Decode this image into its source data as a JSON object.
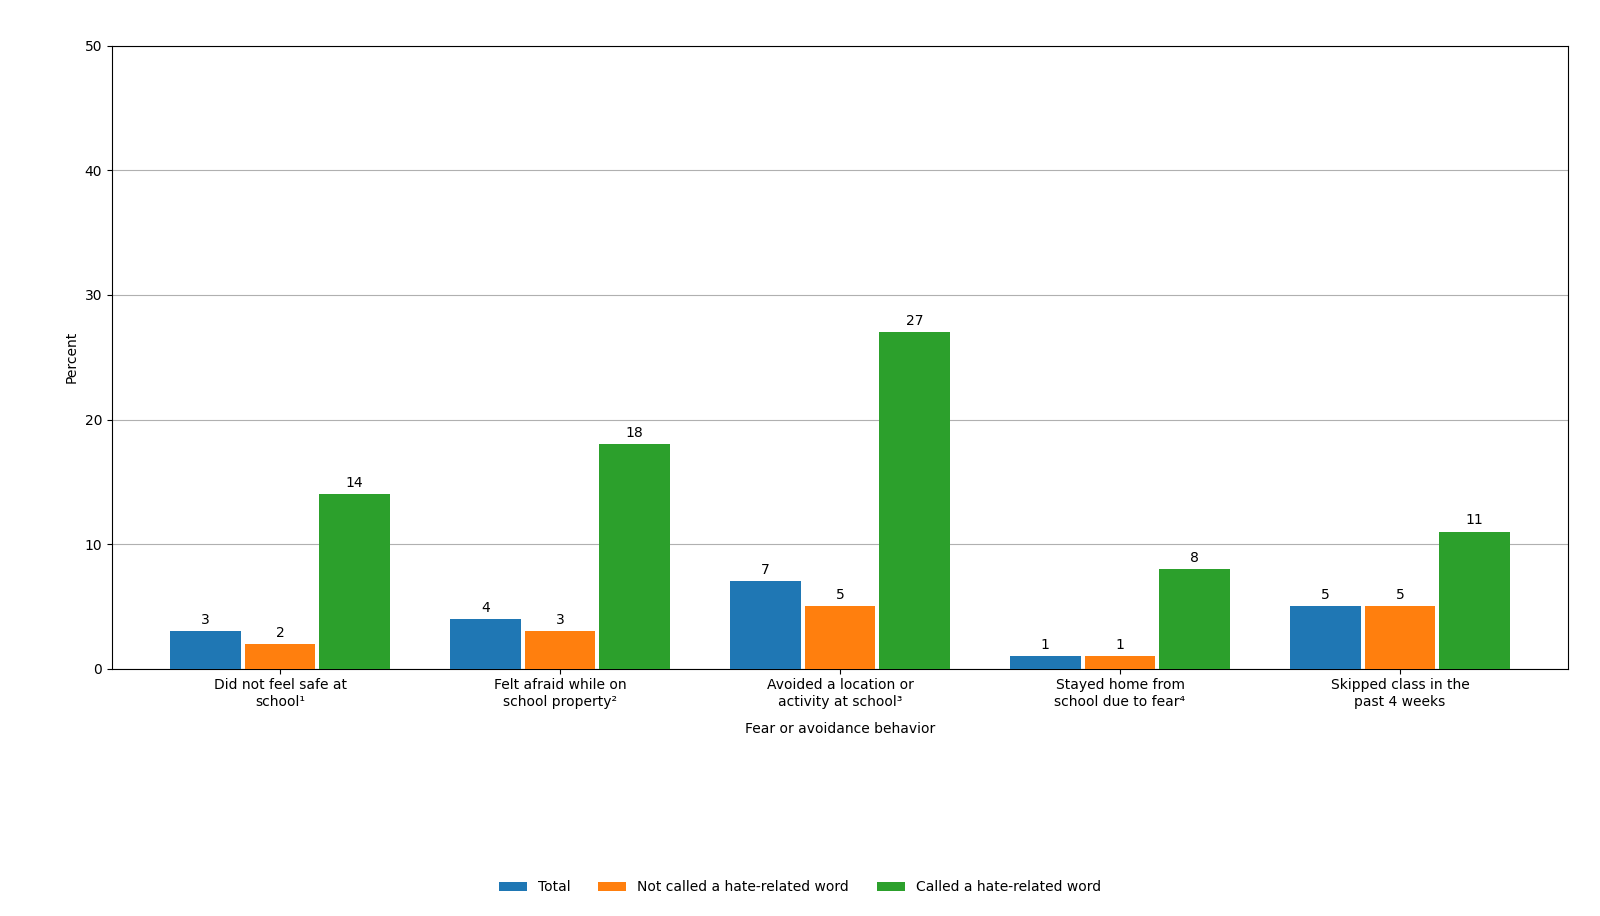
{
  "chart_data": {
    "type": "bar",
    "xlabel": "Fear or avoidance behavior",
    "ylabel": "Percent",
    "categories": [
      "Did not feel safe at\nschool¹",
      "Felt afraid while on\nschool property²",
      "Avoided a location or\nactivity at school³",
      "Stayed home from\nschool due to fear⁴",
      "Skipped class in the\npast 4 weeks"
    ],
    "series": [
      {
        "name": "Total",
        "values": [
          3,
          4,
          7,
          1,
          5
        ]
      },
      {
        "name": "Not called a hate-related word",
        "values": [
          2,
          3,
          5,
          1,
          5
        ]
      },
      {
        "name": "Called a hate-related word",
        "values": [
          14,
          18,
          27,
          8,
          11
        ]
      }
    ],
    "ylim": [
      0,
      50
    ],
    "yticks": [
      0,
      10,
      20,
      30,
      40,
      50
    ],
    "grid": true,
    "legend": "lower center",
    "data_labels": true
  }
}
